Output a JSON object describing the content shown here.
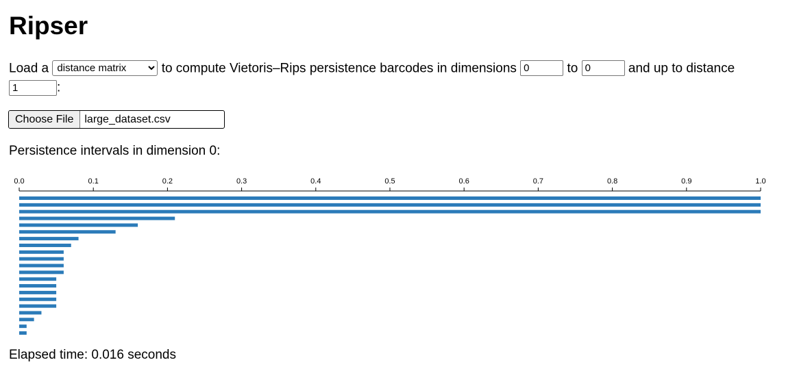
{
  "page": {
    "title": "Ripser"
  },
  "params": {
    "text_load": "Load a",
    "input_type": {
      "selected": "distance matrix",
      "options": [
        "distance matrix"
      ]
    },
    "text_compute": "to compute Vietoris–Rips persistence barcodes in dimensions",
    "dim_min": "0",
    "text_to": "to",
    "dim_max": "0",
    "text_distance": "and up to distance",
    "threshold": "1",
    "text_colon": ":"
  },
  "file": {
    "button_label": "Choose File",
    "filename": "large_dataset.csv"
  },
  "results": {
    "heading": "Persistence intervals in dimension 0:",
    "elapsed": "Elapsed time: 0.016 seconds"
  },
  "colors": {
    "bar": "#2b7bb9"
  },
  "chart_data": {
    "type": "bar",
    "orientation": "horizontal",
    "xlim": [
      0,
      1
    ],
    "ticks": [
      "0.0",
      "0.1",
      "0.2",
      "0.3",
      "0.4",
      "0.5",
      "0.6",
      "0.7",
      "0.8",
      "0.9",
      "1.0"
    ],
    "intervals": [
      {
        "birth": 0,
        "death": 1.0
      },
      {
        "birth": 0,
        "death": 1.0
      },
      {
        "birth": 0,
        "death": 1.0
      },
      {
        "birth": 0,
        "death": 0.21
      },
      {
        "birth": 0,
        "death": 0.16
      },
      {
        "birth": 0,
        "death": 0.13
      },
      {
        "birth": 0,
        "death": 0.08
      },
      {
        "birth": 0,
        "death": 0.07
      },
      {
        "birth": 0,
        "death": 0.06
      },
      {
        "birth": 0,
        "death": 0.06
      },
      {
        "birth": 0,
        "death": 0.06
      },
      {
        "birth": 0,
        "death": 0.06
      },
      {
        "birth": 0,
        "death": 0.05
      },
      {
        "birth": 0,
        "death": 0.05
      },
      {
        "birth": 0,
        "death": 0.05
      },
      {
        "birth": 0,
        "death": 0.05
      },
      {
        "birth": 0,
        "death": 0.05
      },
      {
        "birth": 0,
        "death": 0.03
      },
      {
        "birth": 0,
        "death": 0.02
      },
      {
        "birth": 0,
        "death": 0.01
      },
      {
        "birth": 0,
        "death": 0.01
      }
    ]
  }
}
